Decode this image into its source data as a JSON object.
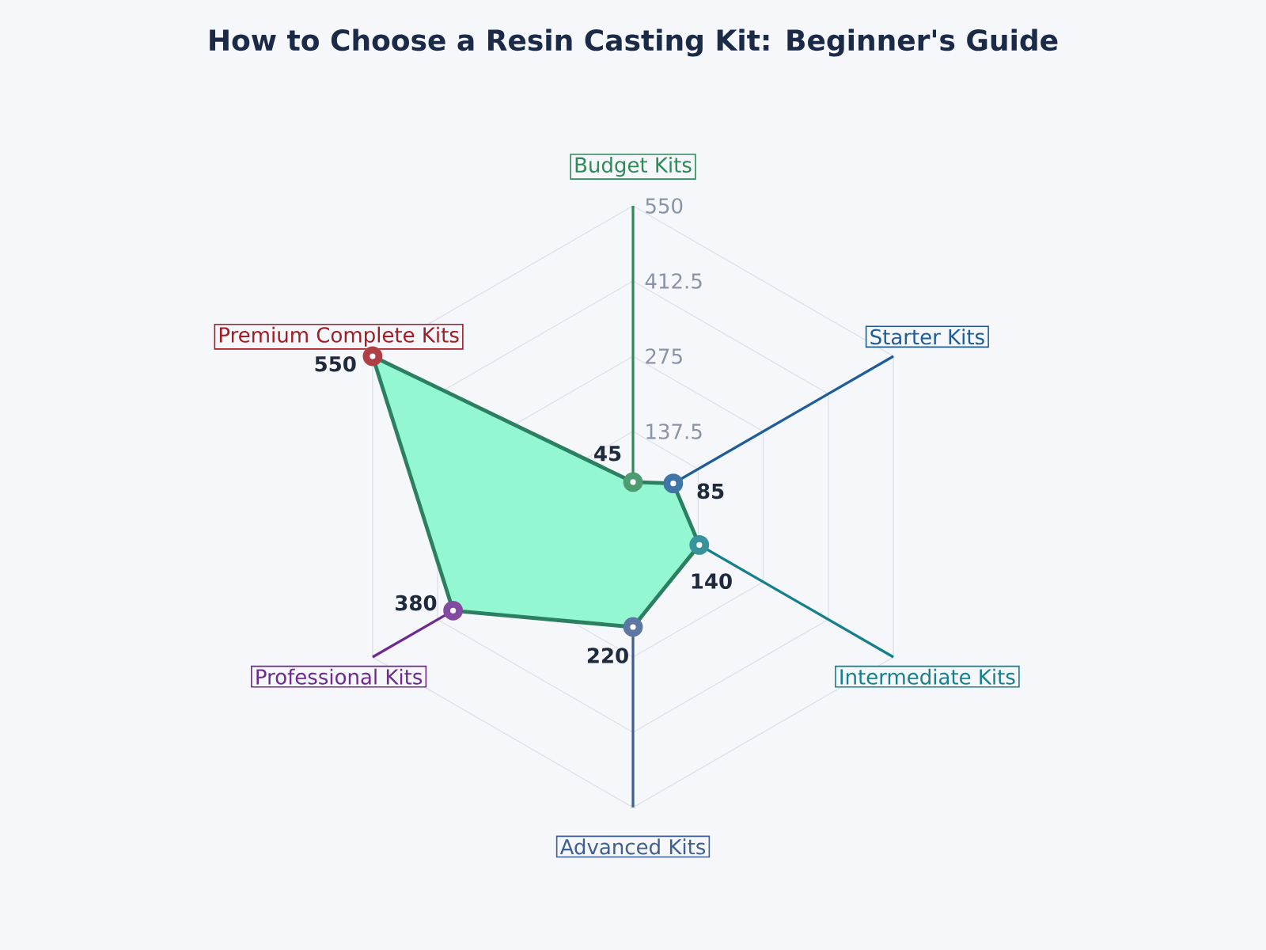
{
  "chart_data": {
    "type": "radar",
    "title": "How to Choose a Resin Casting Kit: Beginner's Guide",
    "categories": [
      "Budget Kits",
      "Starter Kits",
      "Intermediate Kits",
      "Advanced Kits",
      "Professional Kits",
      "Premium Complete Kits"
    ],
    "series": [
      {
        "color": "#93f7d2",
        "values": [
          45,
          85,
          140,
          220,
          380,
          550
        ]
      }
    ],
    "colors": [
      "#2e8b57",
      "#1f5d99",
      "#15808a",
      "#3e5f91",
      "#6d2b8f",
      "#a11d24"
    ],
    "ylim": [
      0,
      550
    ],
    "yticks": [
      137.5,
      275,
      412.5,
      550
    ],
    "grid": true,
    "marker": "circle",
    "data_labels": true
  }
}
